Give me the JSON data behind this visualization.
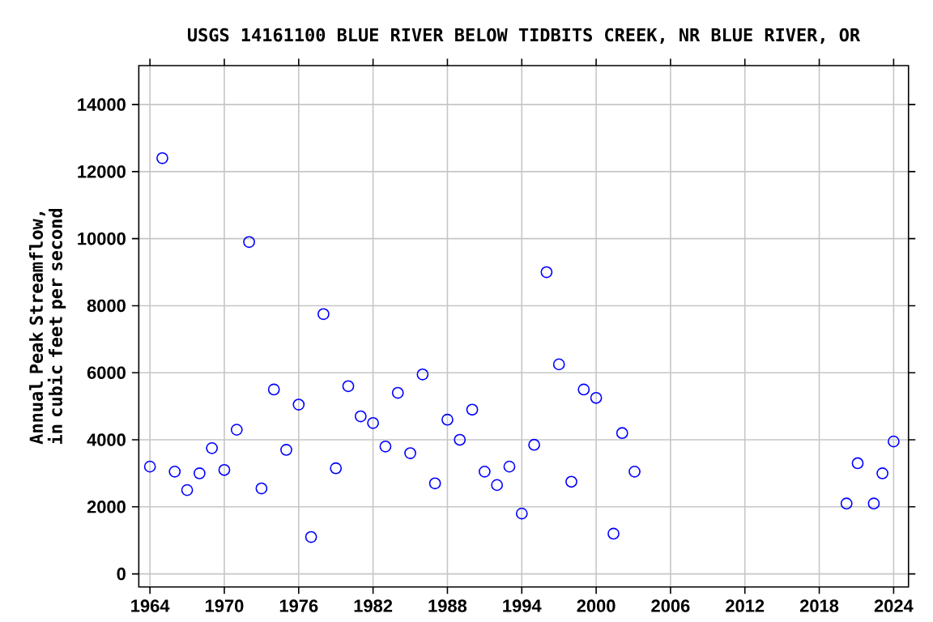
{
  "chart_data": {
    "type": "scatter",
    "title": "USGS 14161100 BLUE RIVER BELOW TIDBITS CREEK, NR BLUE RIVER, OR",
    "ylabel": "Annual Peak Streamflow, in cubic feet per second",
    "x": [
      1964,
      1965,
      1966,
      1967,
      1968,
      1969,
      1970,
      1971,
      1972,
      1973,
      1974,
      1975,
      1976,
      1977,
      1978,
      1979,
      1980,
      1981,
      1982,
      1983,
      1984,
      1985,
      1986,
      1987,
      1988,
      1989,
      1990,
      1991,
      1992,
      1993,
      1994,
      1995,
      1996,
      1997,
      1998,
      1999,
      2000,
      2001.4,
      2002.1,
      2003.1,
      2020.2,
      2021.1,
      2022.4,
      2023.1,
      2024
    ],
    "series": [
      {
        "color": "#0000ff",
        "values": [
          3200,
          12400,
          3050,
          2500,
          3000,
          3750,
          3100,
          4300,
          9900,
          2550,
          5500,
          3700,
          5050,
          1100,
          7750,
          3150,
          5600,
          4700,
          4500,
          3800,
          5400,
          3600,
          5950,
          2700,
          4600,
          4000,
          4900,
          3050,
          2650,
          3200,
          1800,
          3850,
          9000,
          6250,
          2750,
          5500,
          5250,
          1200,
          4200,
          3050,
          2100,
          3300,
          2100,
          3000,
          3950
        ]
      }
    ],
    "xlim": [
      1963.1,
      2025.2
    ],
    "ylim": [
      -390,
      15160
    ],
    "xticks": [
      1964,
      1970,
      1976,
      1982,
      1988,
      1994,
      2000,
      2006,
      2012,
      2018,
      2024
    ],
    "yticks": [
      0,
      2000,
      4000,
      6000,
      8000,
      10000,
      12000,
      14000
    ],
    "grid": true,
    "marker": "circle"
  }
}
